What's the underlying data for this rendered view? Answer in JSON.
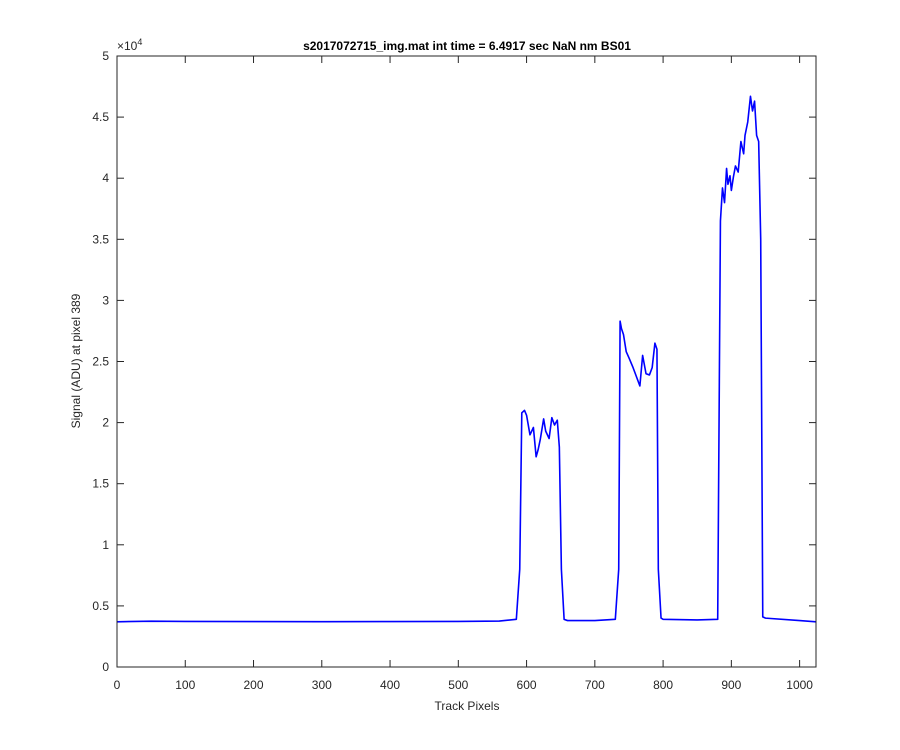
{
  "chart_data": {
    "type": "line",
    "title": "s2017072715_img.mat int time = 6.4917 sec  NaN nm BS01",
    "xlabel": "Track Pixels",
    "ylabel": "Signal (ADU) at pixel 389",
    "xlim": [
      0,
      1024
    ],
    "ylim": [
      0,
      50000
    ],
    "x_ticks": [
      0,
      100,
      200,
      300,
      400,
      500,
      600,
      700,
      800,
      900,
      1000
    ],
    "y_ticks": [
      0,
      5000,
      10000,
      15000,
      20000,
      25000,
      30000,
      35000,
      40000,
      45000,
      50000
    ],
    "y_tick_labels": [
      "0",
      "0.5",
      "1",
      "1.5",
      "2",
      "2.5",
      "3",
      "3.5",
      "4",
      "4.5",
      "5"
    ],
    "y_exponent_base": "×10",
    "y_exponent_power": "4",
    "grid": false,
    "series": [
      {
        "color": "#0000ff",
        "x": [
          0,
          50,
          100,
          200,
          300,
          400,
          500,
          560,
          585,
          590,
          593,
          597,
          600,
          605,
          610,
          614,
          617,
          620,
          625,
          628,
          633,
          637,
          641,
          645,
          648,
          651,
          655,
          660,
          700,
          730,
          735,
          737,
          739,
          742,
          746,
          750,
          756,
          762,
          766,
          770,
          775,
          780,
          784,
          788,
          791,
          793,
          797,
          800,
          850,
          880,
          884,
          887,
          890,
          893,
          895,
          898,
          900,
          903,
          906,
          910,
          914,
          918,
          920,
          924,
          928,
          931,
          934,
          937,
          940,
          943,
          946,
          950,
          1000,
          1024
        ],
        "y": [
          3700,
          3750,
          3730,
          3720,
          3710,
          3720,
          3730,
          3760,
          3900,
          8000,
          20800,
          21000,
          20600,
          19000,
          19600,
          17200,
          17800,
          18600,
          20300,
          19300,
          18700,
          20400,
          19800,
          20200,
          18000,
          8000,
          3900,
          3800,
          3800,
          3900,
          8000,
          28300,
          27700,
          27200,
          25800,
          25300,
          24500,
          23600,
          23000,
          25500,
          24000,
          23900,
          24500,
          26500,
          26000,
          8000,
          4000,
          3900,
          3850,
          3900,
          36500,
          39200,
          38000,
          40800,
          39500,
          40200,
          39000,
          40100,
          41000,
          40500,
          43000,
          42000,
          43500,
          44600,
          46700,
          45500,
          46300,
          43500,
          43000,
          35000,
          4100,
          4000,
          3800,
          3700
        ]
      }
    ]
  }
}
